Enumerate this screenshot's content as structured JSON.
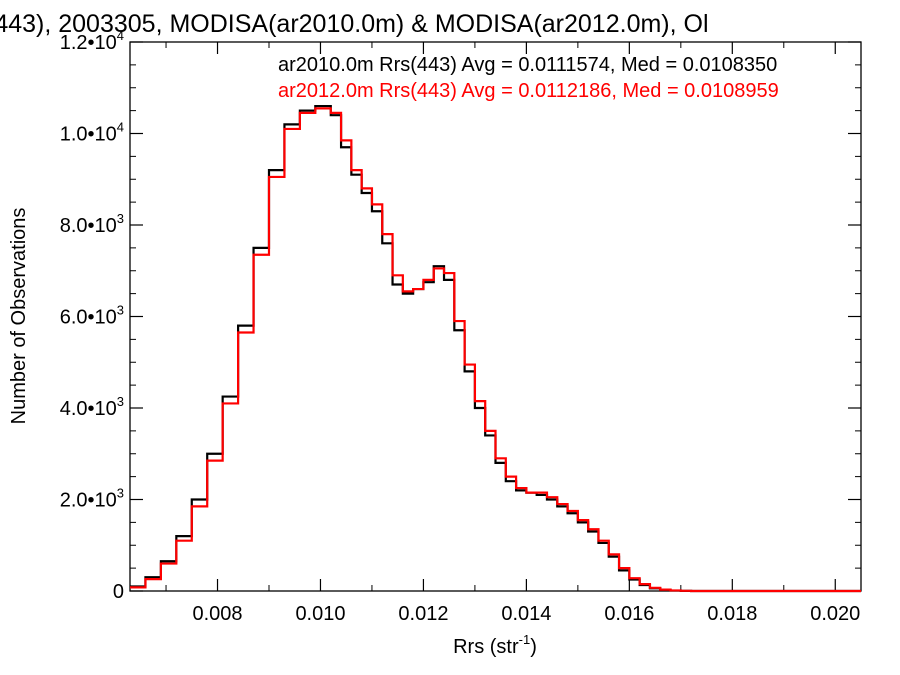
{
  "chart_data": {
    "type": "line",
    "title": "(443), 2003305, MODISA(ar2010.0m) & MODISA(ar2012.0m), Ol",
    "xlabel": "Rrs (str",
    "xlabel_sup": "-1",
    "xlabel_tail": ")",
    "ylabel": "Number of Observations",
    "xlim": [
      0.0063,
      0.0205
    ],
    "ylim": [
      0,
      12000
    ],
    "x_ticks": [
      0.008,
      0.01,
      0.012,
      0.014,
      0.016,
      0.018,
      0.02
    ],
    "x_tick_labels": [
      "0.008",
      "0.010",
      "0.012",
      "0.014",
      "0.016",
      "0.018",
      "0.020"
    ],
    "y_ticks": [
      {
        "value": 0,
        "mant": "0",
        "exp": ""
      },
      {
        "value": 2000,
        "mant": "2.0•10",
        "exp": "3"
      },
      {
        "value": 4000,
        "mant": "4.0•10",
        "exp": "3"
      },
      {
        "value": 6000,
        "mant": "6.0•10",
        "exp": "3"
      },
      {
        "value": 8000,
        "mant": "8.0•10",
        "exp": "3"
      },
      {
        "value": 10000,
        "mant": "1.0•10",
        "exp": "4"
      },
      {
        "value": 12000,
        "mant": "1.2•10",
        "exp": "4"
      }
    ],
    "annotations": [
      {
        "text": "ar2010.0m Rrs(443) Avg = 0.0111574, Med = 0.0108350",
        "color": "#000000"
      },
      {
        "text": "ar2012.0m Rrs(443) Avg = 0.0112186, Med = 0.0108959",
        "color": "#ff0000"
      }
    ],
    "series": [
      {
        "name": "ar2010.0m",
        "color": "#000000",
        "step": true,
        "x": [
          0.0063,
          0.0066,
          0.0069,
          0.0072,
          0.0075,
          0.0078,
          0.0081,
          0.0084,
          0.0087,
          0.009,
          0.0093,
          0.0096,
          0.0099,
          0.0102,
          0.0104,
          0.0106,
          0.0108,
          0.011,
          0.0112,
          0.0114,
          0.0116,
          0.0118,
          0.012,
          0.0122,
          0.0124,
          0.0126,
          0.0128,
          0.013,
          0.0132,
          0.0134,
          0.0136,
          0.0138,
          0.014,
          0.0142,
          0.0144,
          0.0146,
          0.0148,
          0.015,
          0.0152,
          0.0154,
          0.0156,
          0.0158,
          0.016,
          0.0162,
          0.0164,
          0.0166,
          0.0168,
          0.017,
          0.0172,
          0.0174,
          0.0176,
          0.0178,
          0.018,
          0.0182,
          0.0185,
          0.019,
          0.0195,
          0.02,
          0.0205
        ],
        "y": [
          100,
          300,
          650,
          1200,
          2000,
          3000,
          4250,
          5800,
          7500,
          9200,
          10200,
          10500,
          10600,
          10400,
          9700,
          9100,
          8700,
          8300,
          7600,
          6700,
          6500,
          6600,
          6750,
          7100,
          6800,
          5700,
          4800,
          4000,
          3400,
          2800,
          2400,
          2200,
          2150,
          2100,
          2000,
          1850,
          1700,
          1500,
          1300,
          1050,
          750,
          450,
          250,
          130,
          60,
          25,
          10,
          3,
          0,
          0,
          0,
          0,
          0,
          0,
          0,
          0,
          0,
          0,
          0
        ]
      },
      {
        "name": "ar2012.0m",
        "color": "#ff0000",
        "step": true,
        "x": [
          0.0063,
          0.0066,
          0.0069,
          0.0072,
          0.0075,
          0.0078,
          0.0081,
          0.0084,
          0.0087,
          0.009,
          0.0093,
          0.0096,
          0.0099,
          0.0102,
          0.0104,
          0.0106,
          0.0108,
          0.011,
          0.0112,
          0.0114,
          0.0116,
          0.0118,
          0.012,
          0.0122,
          0.0124,
          0.0126,
          0.0128,
          0.013,
          0.0132,
          0.0134,
          0.0136,
          0.0138,
          0.014,
          0.0142,
          0.0144,
          0.0146,
          0.0148,
          0.015,
          0.0152,
          0.0154,
          0.0156,
          0.0158,
          0.016,
          0.0162,
          0.0164,
          0.0166,
          0.0168,
          0.017,
          0.0172,
          0.0174,
          0.0176,
          0.0178,
          0.018,
          0.0182,
          0.0185,
          0.019,
          0.0195,
          0.02,
          0.0205
        ],
        "y": [
          80,
          260,
          600,
          1100,
          1850,
          2850,
          4100,
          5650,
          7350,
          9050,
          10100,
          10450,
          10550,
          10450,
          9850,
          9200,
          8800,
          8450,
          7800,
          6900,
          6550,
          6600,
          6800,
          7050,
          6950,
          5900,
          4950,
          4150,
          3500,
          2900,
          2500,
          2250,
          2150,
          2150,
          2050,
          1900,
          1750,
          1550,
          1350,
          1100,
          800,
          500,
          280,
          150,
          70,
          30,
          12,
          4,
          0,
          0,
          0,
          0,
          0,
          0,
          0,
          0,
          0,
          0,
          0
        ]
      }
    ],
    "grid": false,
    "legend": "top-right annotations"
  }
}
